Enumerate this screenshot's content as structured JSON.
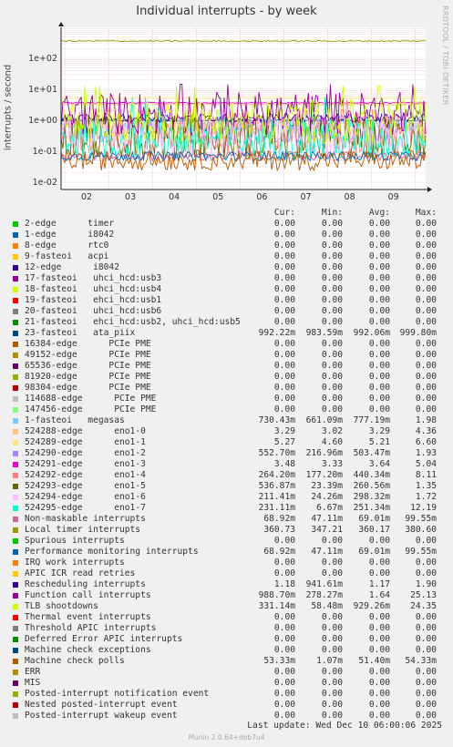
{
  "chart_data": {
    "type": "line",
    "title": "Individual interrupts - by week",
    "ylabel": "interrupts / second",
    "y_scale": "log",
    "ylim": [
      0.01,
      1000
    ],
    "y_ticks": [
      "1e+02",
      "1e+01",
      "1e+00",
      "1e-01",
      "1e-02"
    ],
    "x_ticks": [
      "02",
      "03",
      "04",
      "05",
      "06",
      "07",
      "08",
      "09"
    ],
    "grid": true,
    "legend_placement": "bottom",
    "columns": [
      "Cur:",
      "Min:",
      "Avg:",
      "Max:"
    ],
    "series": [
      {
        "name": "2-edge      timer",
        "color": "#00cc00",
        "cur": "0.00",
        "min": "0.00",
        "avg": "0.00",
        "max": "0.00"
      },
      {
        "name": "1-edge      i8042",
        "color": "#0066b3",
        "cur": "0.00",
        "min": "0.00",
        "avg": "0.00",
        "max": "0.00"
      },
      {
        "name": "8-edge      rtc0",
        "color": "#ff8000",
        "cur": "0.00",
        "min": "0.00",
        "avg": "0.00",
        "max": "0.00"
      },
      {
        "name": "9-fasteoi   acpi",
        "color": "#ffcc00",
        "cur": "0.00",
        "min": "0.00",
        "avg": "0.00",
        "max": "0.00"
      },
      {
        "name": "12-edge      i8042",
        "color": "#330099",
        "cur": "0.00",
        "min": "0.00",
        "avg": "0.00",
        "max": "0.00"
      },
      {
        "name": "17-fasteoi   uhci_hcd:usb3",
        "color": "#990099",
        "cur": "0.00",
        "min": "0.00",
        "avg": "0.00",
        "max": "0.00"
      },
      {
        "name": "18-fasteoi   uhci_hcd:usb4",
        "color": "#ccff00",
        "cur": "0.00",
        "min": "0.00",
        "avg": "0.00",
        "max": "0.00"
      },
      {
        "name": "19-fasteoi   ehci_hcd:usb1",
        "color": "#ff0000",
        "cur": "0.00",
        "min": "0.00",
        "avg": "0.00",
        "max": "0.00"
      },
      {
        "name": "20-fasteoi   uhci_hcd:usb6",
        "color": "#808080",
        "cur": "0.00",
        "min": "0.00",
        "avg": "0.00",
        "max": "0.00"
      },
      {
        "name": "21-fasteoi   ehci_hcd:usb2, uhci_hcd:usb5",
        "color": "#008f00",
        "cur": "0.00",
        "min": "0.00",
        "avg": "0.00",
        "max": "0.00"
      },
      {
        "name": "23-fasteoi   ata_piix",
        "color": "#00487d",
        "cur": "992.22m",
        "min": "983.59m",
        "avg": "992.06m",
        "max": "999.80m"
      },
      {
        "name": "16384-edge      PCIe PME",
        "color": "#b35a00",
        "cur": "0.00",
        "min": "0.00",
        "avg": "0.00",
        "max": "0.00"
      },
      {
        "name": "49152-edge      PCIe PME",
        "color": "#b38f00",
        "cur": "0.00",
        "min": "0.00",
        "avg": "0.00",
        "max": "0.00"
      },
      {
        "name": "65536-edge      PCIe PME",
        "color": "#6b006b",
        "cur": "0.00",
        "min": "0.00",
        "avg": "0.00",
        "max": "0.00"
      },
      {
        "name": "81920-edge      PCIe PME",
        "color": "#8fb300",
        "cur": "0.00",
        "min": "0.00",
        "avg": "0.00",
        "max": "0.00"
      },
      {
        "name": "98304-edge      PCIe PME",
        "color": "#b30000",
        "cur": "0.00",
        "min": "0.00",
        "avg": "0.00",
        "max": "0.00"
      },
      {
        "name": "114688-edge      PCIe PME",
        "color": "#bebebe",
        "cur": "0.00",
        "min": "0.00",
        "avg": "0.00",
        "max": "0.00"
      },
      {
        "name": "147456-edge      PCIe PME",
        "color": "#80ff80",
        "cur": "0.00",
        "min": "0.00",
        "avg": "0.00",
        "max": "0.00"
      },
      {
        "name": "1-fasteoi   megasas",
        "color": "#80c9ff",
        "cur": "730.43m",
        "min": "661.09m",
        "avg": "777.19m",
        "max": "1.98"
      },
      {
        "name": "524288-edge      eno1-0",
        "color": "#ffc080",
        "cur": "3.29",
        "min": "3.02",
        "avg": "3.29",
        "max": "4.36"
      },
      {
        "name": "524289-edge      eno1-1",
        "color": "#ffe680",
        "cur": "5.27",
        "min": "4.60",
        "avg": "5.21",
        "max": "6.60"
      },
      {
        "name": "524290-edge      eno1-2",
        "color": "#aa80ff",
        "cur": "552.70m",
        "min": "216.96m",
        "avg": "503.47m",
        "max": "1.93"
      },
      {
        "name": "524291-edge      eno1-3",
        "color": "#ee00cc",
        "cur": "3.48",
        "min": "3.33",
        "avg": "3.64",
        "max": "5.04"
      },
      {
        "name": "524292-edge      eno1-4",
        "color": "#ff8080",
        "cur": "264.20m",
        "min": "177.20m",
        "avg": "440.34m",
        "max": "8.11"
      },
      {
        "name": "524293-edge      eno1-5",
        "color": "#666600",
        "cur": "536.87m",
        "min": "23.39m",
        "avg": "260.56m",
        "max": "1.35"
      },
      {
        "name": "524294-edge      eno1-6",
        "color": "#ffbfff",
        "cur": "211.41m",
        "min": "24.26m",
        "avg": "298.32m",
        "max": "1.72"
      },
      {
        "name": "524295-edge      eno1-7",
        "color": "#00ffcc",
        "cur": "231.11m",
        "min": "6.67m",
        "avg": "251.34m",
        "max": "12.19"
      },
      {
        "name": "Non-maskable interrupts",
        "color": "#cc6699",
        "cur": "68.92m",
        "min": "47.11m",
        "avg": "69.01m",
        "max": "99.55m"
      },
      {
        "name": "Local timer interrupts",
        "color": "#999900",
        "cur": "360.73",
        "min": "347.21",
        "avg": "360.17",
        "max": "380.60"
      },
      {
        "name": "Spurious interrupts",
        "color": "#00cc00",
        "cur": "0.00",
        "min": "0.00",
        "avg": "0.00",
        "max": "0.00"
      },
      {
        "name": "Performance monitoring interrupts",
        "color": "#0066b3",
        "cur": "68.92m",
        "min": "47.11m",
        "avg": "69.01m",
        "max": "99.55m"
      },
      {
        "name": "IRQ work interrupts",
        "color": "#ff8000",
        "cur": "0.00",
        "min": "0.00",
        "avg": "0.00",
        "max": "0.00"
      },
      {
        "name": "APIC ICR read retries",
        "color": "#ffcc00",
        "cur": "0.00",
        "min": "0.00",
        "avg": "0.00",
        "max": "0.00"
      },
      {
        "name": "Rescheduling interrupts",
        "color": "#330099",
        "cur": "1.18",
        "min": "941.61m",
        "avg": "1.17",
        "max": "1.90"
      },
      {
        "name": "Function call interrupts",
        "color": "#990099",
        "cur": "988.70m",
        "min": "278.27m",
        "avg": "1.64",
        "max": "25.13"
      },
      {
        "name": "TLB shootdowns",
        "color": "#ccff00",
        "cur": "331.14m",
        "min": "58.48m",
        "avg": "929.26m",
        "max": "24.35"
      },
      {
        "name": "Thermal event interrupts",
        "color": "#ff0000",
        "cur": "0.00",
        "min": "0.00",
        "avg": "0.00",
        "max": "0.00"
      },
      {
        "name": "Threshold APIC interrupts",
        "color": "#808080",
        "cur": "0.00",
        "min": "0.00",
        "avg": "0.00",
        "max": "0.00"
      },
      {
        "name": "Deferred Error APIC interrupts",
        "color": "#008f00",
        "cur": "0.00",
        "min": "0.00",
        "avg": "0.00",
        "max": "0.00"
      },
      {
        "name": "Machine check exceptions",
        "color": "#00487d",
        "cur": "0.00",
        "min": "0.00",
        "avg": "0.00",
        "max": "0.00"
      },
      {
        "name": "Machine check polls",
        "color": "#b35a00",
        "cur": "53.33m",
        "min": "1.07m",
        "avg": "51.40m",
        "max": "54.33m"
      },
      {
        "name": "ERR",
        "color": "#b38f00",
        "cur": "0.00",
        "min": "0.00",
        "avg": "0.00",
        "max": "0.00"
      },
      {
        "name": "MIS",
        "color": "#6b006b",
        "cur": "0.00",
        "min": "0.00",
        "avg": "0.00",
        "max": "0.00"
      },
      {
        "name": "Posted-interrupt notification event",
        "color": "#8fb300",
        "cur": "0.00",
        "min": "0.00",
        "avg": "0.00",
        "max": "0.00"
      },
      {
        "name": "Nested posted-interrupt event",
        "color": "#b30000",
        "cur": "0.00",
        "min": "0.00",
        "avg": "0.00",
        "max": "0.00"
      },
      {
        "name": "Posted-interrupt wakeup event",
        "color": "#bebebe",
        "cur": "0.00",
        "min": "0.00",
        "avg": "0.00",
        "max": "0.00"
      }
    ]
  },
  "watermark": "RRDTOOL / TOBI OETIKER",
  "footer": "Last update:  Wed Dec 10 06:00:06 2025",
  "credit": "Munin 2.0.64+deb7u4"
}
